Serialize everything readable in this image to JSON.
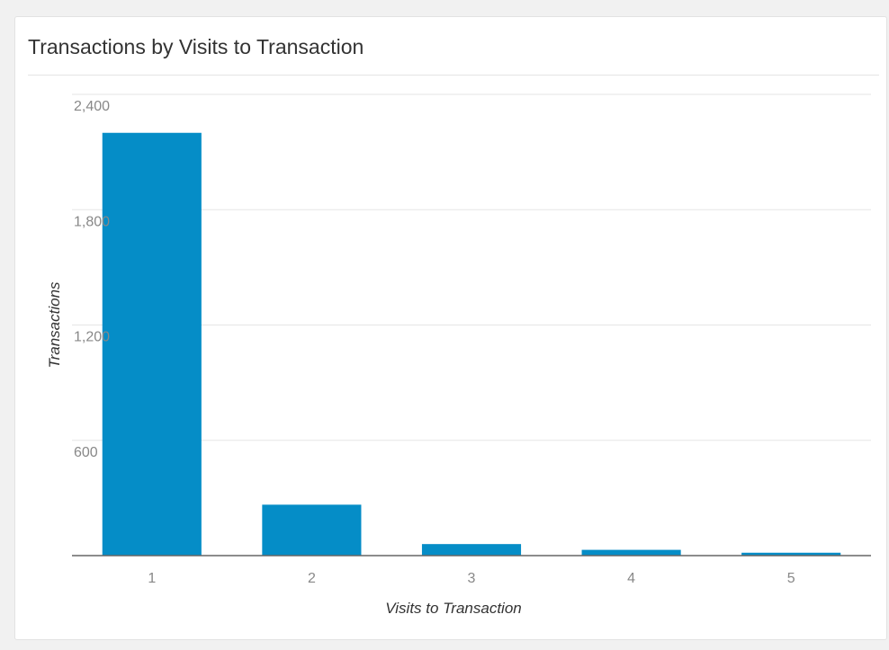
{
  "chart_data": {
    "type": "bar",
    "title": "Transactions by Visits to Transaction",
    "xlabel": "Visits to Transaction",
    "ylabel": "Transactions",
    "categories": [
      "1",
      "2",
      "3",
      "4",
      "5"
    ],
    "values": [
      2200,
      265,
      60,
      30,
      15
    ],
    "ylim": [
      0,
      2400
    ],
    "yticks": [
      600,
      1200,
      1800,
      2400
    ],
    "ytick_labels": [
      "600",
      "1,200",
      "1,800",
      "2,400"
    ],
    "grid": true,
    "legend": "none",
    "bar_color": "#058dc7"
  }
}
